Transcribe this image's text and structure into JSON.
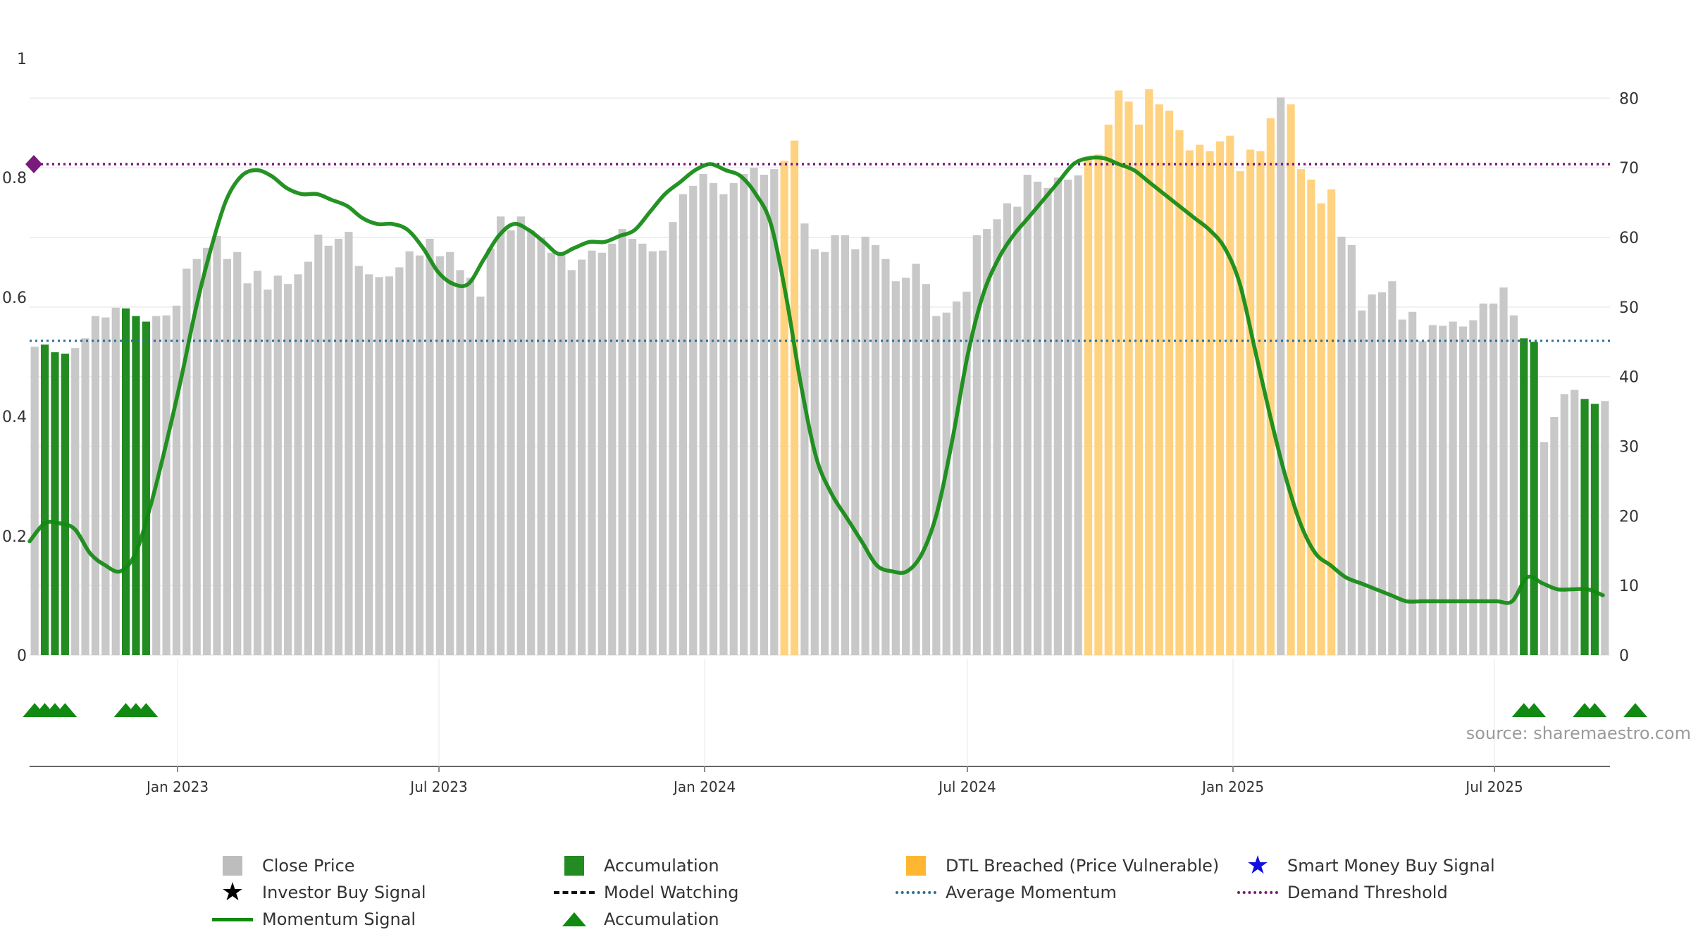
{
  "source_text": "source: sharemaestro.com",
  "legend": [
    {
      "label": "Close Price",
      "kind": "square",
      "color": "#bdbdbd",
      "icon": "square-icon"
    },
    {
      "label": "Accumulation",
      "kind": "square",
      "color": "#228b22",
      "icon": "square-icon"
    },
    {
      "label": "DTL Breached (Price Vulnerable)",
      "kind": "square",
      "color": "#ffb732",
      "icon": "square-icon"
    },
    {
      "label": "Smart Money Buy Signal",
      "kind": "star",
      "color": "#1010e0",
      "icon": "star-icon"
    },
    {
      "label": "Investor Buy Signal",
      "kind": "star",
      "color": "#000000",
      "icon": "star-icon"
    },
    {
      "label": "Model Watching",
      "kind": "dash",
      "color": "#111111",
      "icon": "dashed-line-icon"
    },
    {
      "label": "Average Momentum",
      "kind": "dot-blue",
      "color": "#2a6f97",
      "icon": "dotted-line-icon"
    },
    {
      "label": "Demand Threshold",
      "kind": "dot-purple",
      "color": "#7a1a7a",
      "icon": "dotted-line-icon"
    },
    {
      "label": "Momentum Signal",
      "kind": "solid",
      "color": "#118a11",
      "icon": "line-icon"
    },
    {
      "label": "Accumulation",
      "kind": "triangle",
      "color": "#118a11",
      "icon": "triangle-icon"
    }
  ],
  "chart_data": {
    "type": "bar",
    "x_tick_labels": [
      "Jan 2023",
      "Jul 2023",
      "Jan 2024",
      "Jul 2024",
      "Jan 2025",
      "Jul 2025"
    ],
    "left_axis": {
      "ticks": [
        "0",
        "0.2",
        "0.4",
        "0.6",
        "0.8",
        "1"
      ],
      "range": [
        0,
        1
      ]
    },
    "right_axis": {
      "ticks": [
        "0",
        "10",
        "20",
        "30",
        "40",
        "50",
        "60",
        "70",
        "80"
      ],
      "range": [
        0,
        86
      ]
    },
    "colors": {
      "close": "#c8c8c8",
      "accumulation": "#228b22",
      "dtl": "#ffd27f",
      "momentum": "#118a11",
      "average": "#2a6f97",
      "threshold": "#7a1a7a",
      "grid": "#ececec"
    },
    "bar_values": [
      44.3,
      44.6,
      43.5,
      43.3,
      44.1,
      45.5,
      48.7,
      48.5,
      49.9,
      49.8,
      48.7,
      47.9,
      48.7,
      48.8,
      50.2,
      55.5,
      56.9,
      58.5,
      60.2,
      56.9,
      57.9,
      53.4,
      55.2,
      52.5,
      54.5,
      53.3,
      54.7,
      56.5,
      60.4,
      58.8,
      59.8,
      60.8,
      55.9,
      54.7,
      54.3,
      54.4,
      55.7,
      58.0,
      57.4,
      59.8,
      57.3,
      57.9,
      55.3,
      54.2,
      51.5,
      58.4,
      63.0,
      61.0,
      63.0,
      61.0,
      60.0,
      57.8,
      57.5,
      55.3,
      56.8,
      58.1,
      57.8,
      59.1,
      61.2,
      59.8,
      59.1,
      58.0,
      58.1,
      62.2,
      66.2,
      67.4,
      69.1,
      67.8,
      66.2,
      67.8,
      69.1,
      70.0,
      69.0,
      69.8,
      71.0,
      73.9,
      62.0,
      58.3,
      57.9,
      60.3,
      60.3,
      58.3,
      60.1,
      58.9,
      56.9,
      53.7,
      54.2,
      56.2,
      53.3,
      48.7,
      49.2,
      50.8,
      52.2,
      60.3,
      61.2,
      62.6,
      64.9,
      64.4,
      69.0,
      68.0,
      67.1,
      68.6,
      68.3,
      68.9,
      71.3,
      71.9,
      76.2,
      81.1,
      79.5,
      76.2,
      81.3,
      79.1,
      78.2,
      75.4,
      72.5,
      73.3,
      72.4,
      73.8,
      74.6,
      69.5,
      72.6,
      72.4,
      77.1,
      80.1,
      79.1,
      69.8,
      68.3,
      64.9,
      66.9,
      60.1,
      58.9,
      49.5,
      51.8,
      52.1,
      53.7,
      48.2,
      49.3,
      45.1,
      47.4,
      47.3,
      47.9,
      47.2,
      48.1,
      50.5,
      50.5,
      52.8,
      48.8,
      45.5,
      45.0,
      30.6,
      34.2,
      37.5,
      38.1,
      36.8,
      36.1,
      36.5
    ],
    "bar_categories": [
      "c",
      "a",
      "a",
      "a",
      "c",
      "c",
      "c",
      "c",
      "c",
      "a",
      "a",
      "a",
      "c",
      "c",
      "c",
      "c",
      "c",
      "c",
      "c",
      "c",
      "c",
      "c",
      "c",
      "c",
      "c",
      "c",
      "c",
      "c",
      "c",
      "c",
      "c",
      "c",
      "c",
      "c",
      "c",
      "c",
      "c",
      "c",
      "c",
      "c",
      "c",
      "c",
      "c",
      "c",
      "c",
      "c",
      "c",
      "c",
      "c",
      "c",
      "c",
      "c",
      "c",
      "c",
      "c",
      "c",
      "c",
      "c",
      "c",
      "c",
      "c",
      "c",
      "c",
      "c",
      "c",
      "c",
      "c",
      "c",
      "c",
      "c",
      "c",
      "c",
      "c",
      "c",
      "d",
      "d",
      "c",
      "c",
      "c",
      "c",
      "c",
      "c",
      "c",
      "c",
      "c",
      "c",
      "c",
      "c",
      "c",
      "c",
      "c",
      "c",
      "c",
      "c",
      "c",
      "c",
      "c",
      "c",
      "c",
      "c",
      "c",
      "c",
      "c",
      "c",
      "d",
      "d",
      "d",
      "d",
      "d",
      "d",
      "d",
      "d",
      "d",
      "d",
      "d",
      "d",
      "d",
      "d",
      "d",
      "d",
      "d",
      "d",
      "d",
      "c",
      "d",
      "d",
      "d",
      "d",
      "d",
      "c",
      "c",
      "c",
      "c",
      "c",
      "c",
      "c",
      "c",
      "c",
      "c",
      "c",
      "c",
      "c",
      "c",
      "c",
      "c",
      "c",
      "c",
      "a",
      "a",
      "c",
      "c",
      "c",
      "c",
      "a",
      "a",
      "c",
      "c",
      "a",
      "c",
      "c"
    ],
    "momentum": [
      0.19,
      0.22,
      0.22,
      0.21,
      0.17,
      0.15,
      0.14,
      0.17,
      0.25,
      0.35,
      0.46,
      0.58,
      0.68,
      0.76,
      0.8,
      0.81,
      0.8,
      0.78,
      0.77,
      0.77,
      0.76,
      0.75,
      0.73,
      0.72,
      0.72,
      0.71,
      0.68,
      0.64,
      0.62,
      0.62,
      0.66,
      0.7,
      0.72,
      0.71,
      0.69,
      0.67,
      0.68,
      0.69,
      0.69,
      0.7,
      0.71,
      0.74,
      0.77,
      0.79,
      0.81,
      0.82,
      0.81,
      0.8,
      0.77,
      0.72,
      0.6,
      0.45,
      0.33,
      0.27,
      0.23,
      0.19,
      0.15,
      0.14,
      0.14,
      0.17,
      0.24,
      0.36,
      0.5,
      0.6,
      0.66,
      0.7,
      0.73,
      0.76,
      0.79,
      0.82,
      0.83,
      0.83,
      0.82,
      0.81,
      0.79,
      0.77,
      0.75,
      0.73,
      0.71,
      0.68,
      0.62,
      0.51,
      0.4,
      0.3,
      0.22,
      0.17,
      0.15,
      0.13,
      0.12,
      0.11,
      0.1,
      0.09,
      0.09,
      0.09,
      0.09,
      0.09,
      0.09,
      0.09,
      0.09,
      0.13,
      0.12,
      0.11,
      0.11,
      0.11,
      0.1
    ],
    "average_momentum": 0.525,
    "demand_threshold": 0.82,
    "accumulation_markers": [
      0,
      1,
      2,
      3,
      9,
      10,
      11,
      147,
      148,
      153,
      154,
      158
    ]
  }
}
